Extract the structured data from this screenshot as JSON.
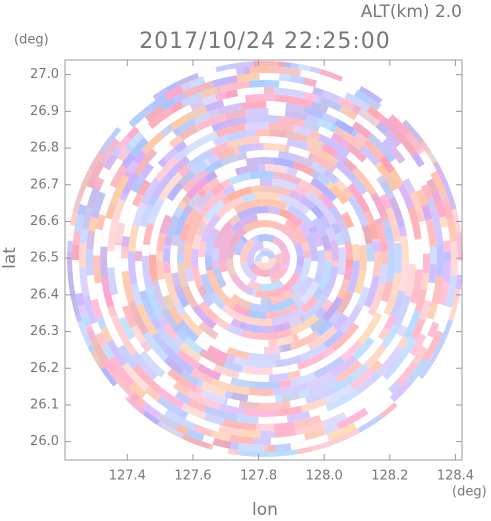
{
  "chart_data": {
    "type": "field",
    "title": "2017/10/24 22:25:00",
    "subtitle": "ALT(km) 2.0",
    "x_label": "lon",
    "y_label": "lat",
    "x_unit": "(deg)",
    "y_unit": "(deg)",
    "xlim": [
      127.21,
      128.42
    ],
    "ylim": [
      25.95,
      27.04
    ],
    "xticks": [
      127.4,
      127.6,
      127.8,
      {
        "value": 128.0,
        "label": "128.0"
      },
      128.2,
      128.4
    ],
    "yticks": [
      {
        "value": 26.0,
        "label": "26.0"
      },
      26.1,
      26.2,
      26.3,
      26.4,
      26.5,
      26.6,
      26.7,
      26.8,
      26.9,
      {
        "value": 27.0,
        "label": "27.0"
      }
    ]
  }
}
